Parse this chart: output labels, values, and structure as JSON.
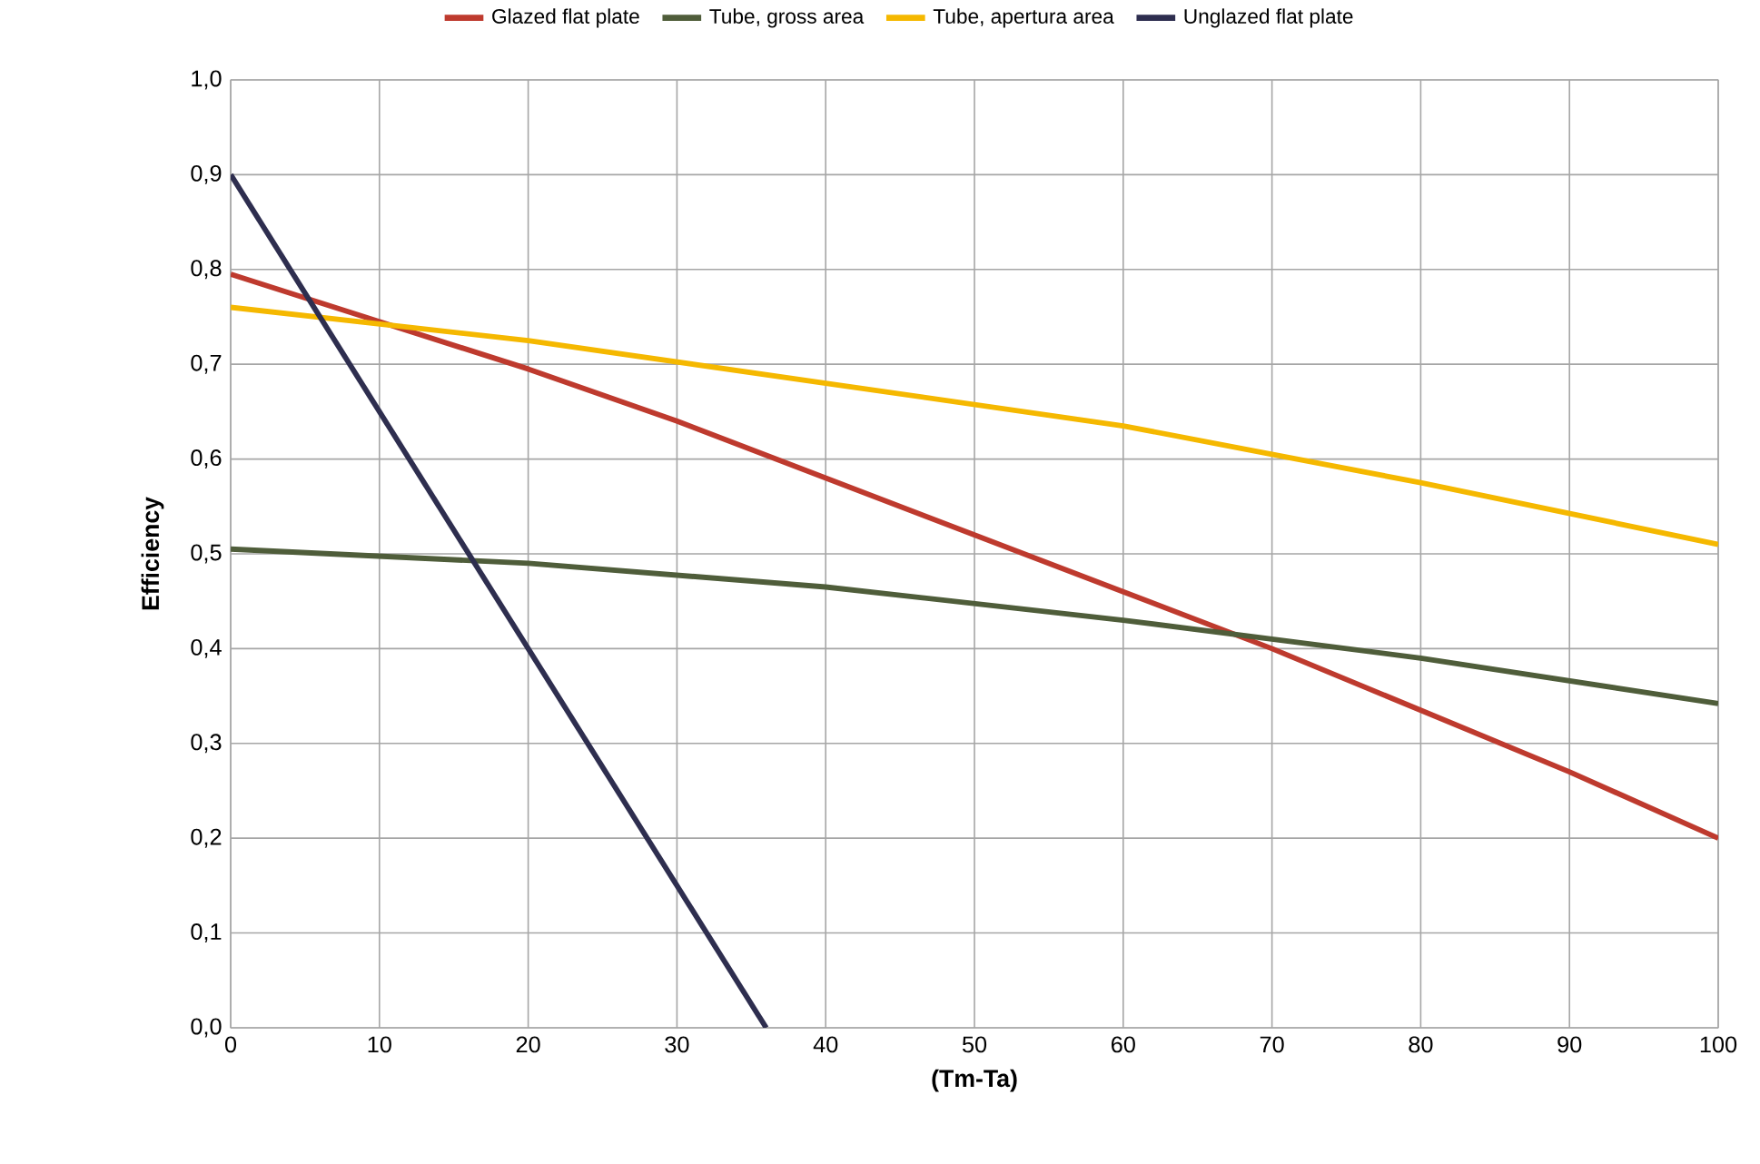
{
  "chart_data": {
    "type": "line",
    "xlabel": "(Tm-Ta)",
    "ylabel": "Efficiency",
    "xlim": [
      0,
      100
    ],
    "xticks": [
      0,
      10,
      20,
      30,
      40,
      50,
      60,
      70,
      80,
      90,
      100
    ],
    "ylim": [
      0,
      1
    ],
    "yticks": [
      {
        "value": 0,
        "label": "0,0"
      },
      {
        "value": 0.1,
        "label": "0,1"
      },
      {
        "value": 0.2,
        "label": "0,2"
      },
      {
        "value": 0.3,
        "label": "0,3"
      },
      {
        "value": 0.4,
        "label": "0,4"
      },
      {
        "value": 0.5,
        "label": "0,5"
      },
      {
        "value": 0.6,
        "label": "0,6"
      },
      {
        "value": 0.7,
        "label": "0,7"
      },
      {
        "value": 0.8,
        "label": "0,8"
      },
      {
        "value": 0.9,
        "label": "0,9"
      },
      {
        "value": 1,
        "label": "1,0"
      }
    ],
    "grid": true,
    "legend": "top",
    "series": [
      {
        "name": "Glazed flat plate",
        "color": "#be3a2e",
        "x": [
          0,
          10,
          20,
          30,
          40,
          50,
          60,
          70,
          80,
          90,
          100
        ],
        "values": [
          0.795,
          0.745,
          0.695,
          0.64,
          0.58,
          0.52,
          0.46,
          0.4,
          0.335,
          0.27,
          0.2
        ]
      },
      {
        "name": "Tube, gross area",
        "color": "#4f5d3a",
        "x": [
          0,
          20,
          40,
          60,
          80,
          100
        ],
        "values": [
          0.505,
          0.49,
          0.465,
          0.43,
          0.39,
          0.342
        ]
      },
      {
        "name": "Tube, apertura area",
        "color": "#f5b800",
        "x": [
          0,
          20,
          40,
          60,
          70,
          80,
          100
        ],
        "values": [
          0.76,
          0.725,
          0.68,
          0.635,
          0.605,
          0.575,
          0.51
        ]
      },
      {
        "name": "Unglazed flat plate",
        "color": "#2e2e4f",
        "x": [
          0,
          36
        ],
        "values": [
          0.9,
          0
        ]
      }
    ]
  }
}
